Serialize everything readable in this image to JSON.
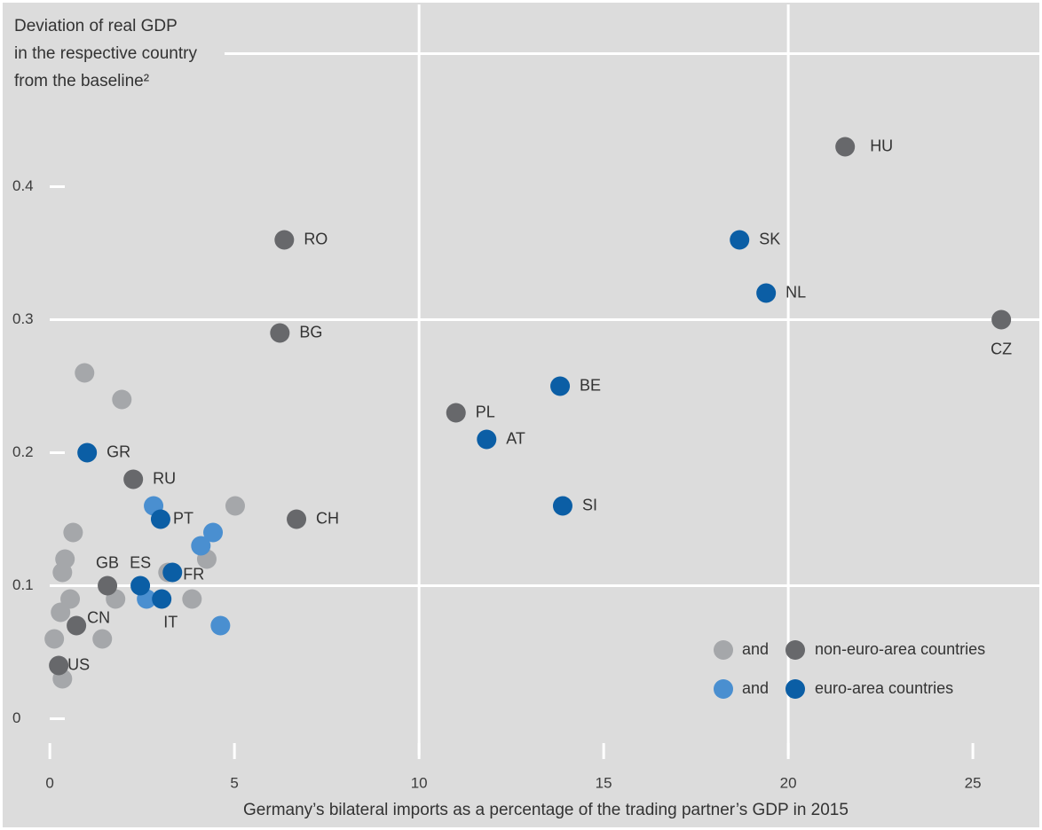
{
  "chart_data": {
    "type": "scatter",
    "y_title_lines": [
      "Deviation of real GDP",
      "in the respective country",
      "from the baseline²"
    ],
    "x_title": "Germany’s bilateral imports as a percentage of the trading partner’s GDP in 2015",
    "xlim": [
      -1.23,
      26.8
    ],
    "ylim": [
      -0.033,
      0.537
    ],
    "xticks": [
      0,
      5,
      10,
      15,
      20,
      25
    ],
    "yticks": [
      0,
      0.1,
      0.2,
      0.3,
      0.4
    ],
    "xgrid": [
      10,
      20
    ],
    "ygrid": [
      0.1,
      0.3,
      0.5
    ],
    "legend_joiner": "and",
    "series": [
      {
        "color": "#a5a7aa",
        "x": [
          0.94,
          1.95,
          5.02,
          0.63,
          0.41,
          0.34,
          4.25,
          0.55,
          1.78,
          0.29,
          3.85,
          0.12,
          1.42,
          0.34,
          3.2
        ],
        "values": [
          0.26,
          0.24,
          0.16,
          0.14,
          0.12,
          0.11,
          0.12,
          0.09,
          0.09,
          0.08,
          0.09,
          0.06,
          0.06,
          0.03,
          0.11
        ]
      },
      {
        "name": "non-euro-area countries",
        "color": "#67686b",
        "labels": [
          "HU",
          "RO",
          "BG",
          "CZ",
          "PL",
          "RU",
          "CH",
          "GB",
          "CN",
          "US"
        ],
        "x": [
          21.54,
          6.35,
          6.23,
          25.77,
          11.0,
          2.26,
          6.68,
          1.56,
          0.72,
          0.24
        ],
        "values": [
          0.43,
          0.36,
          0.29,
          0.3,
          0.23,
          0.18,
          0.15,
          0.1,
          0.07,
          0.04
        ]
      },
      {
        "color": "#4a8fd0",
        "x": [
          2.81,
          4.42,
          4.09,
          2.62,
          4.62
        ],
        "values": [
          0.16,
          0.14,
          0.13,
          0.09,
          0.07
        ]
      },
      {
        "name": "euro-area countries",
        "color": "#0b5ea5",
        "labels": [
          "SK",
          "NL",
          "BE",
          "AT",
          "SI",
          "GR",
          "PT",
          "ES",
          "FR",
          "IT"
        ],
        "x": [
          18.68,
          19.4,
          13.82,
          11.83,
          13.89,
          1.01,
          3.0,
          2.45,
          3.32,
          3.03
        ],
        "values": [
          0.36,
          0.32,
          0.25,
          0.21,
          0.16,
          0.2,
          0.15,
          0.1,
          0.11,
          0.09
        ]
      }
    ]
  }
}
